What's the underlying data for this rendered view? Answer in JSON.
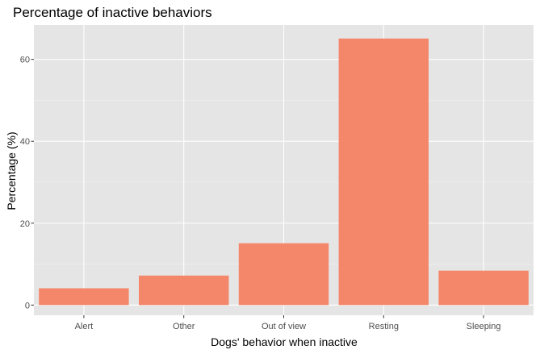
{
  "chart_data": {
    "type": "bar",
    "title": "Percentage of inactive behaviors",
    "xlabel": "Dogs' behavior when inactive",
    "ylabel": "Percentage (%)",
    "categories": [
      "Alert",
      "Other",
      "Out of view",
      "Resting",
      "Sleeping"
    ],
    "values": [
      4.1,
      7.2,
      15.1,
      65.1,
      8.4
    ],
    "ylim": [
      -2.5,
      68.4
    ],
    "yticks": [
      0,
      20,
      40,
      60
    ],
    "yticks_labels": [
      "0",
      "20",
      "40",
      "60"
    ],
    "grid": true,
    "colors": {
      "bar": "#F4876A",
      "panel": "#E5E5E5",
      "grid_major": "#FFFFFF",
      "grid_minor": "#F2F2F2",
      "tick_text": "#4D4D4D",
      "tick_mark": "#333333"
    }
  }
}
